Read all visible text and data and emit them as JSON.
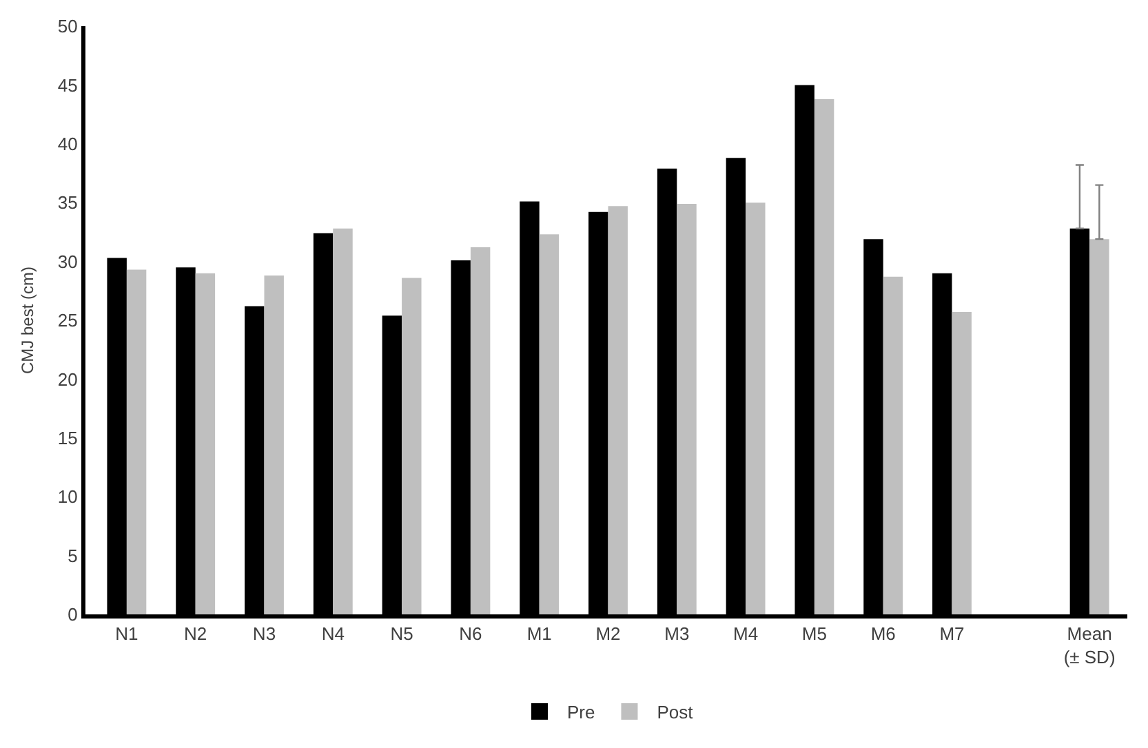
{
  "chart_data": {
    "type": "bar",
    "ylabel": "CMJ best (cm)",
    "categories": [
      "N1",
      "N2",
      "N3",
      "N4",
      "N5",
      "N6",
      "M1",
      "M2",
      "M3",
      "M4",
      "M5",
      "M6",
      "M7",
      null,
      "Mean\n(± SD)"
    ],
    "series": [
      {
        "name": "Pre",
        "color": "#000000",
        "values": [
          30.3,
          29.5,
          26.2,
          32.4,
          25.4,
          30.1,
          35.1,
          34.2,
          37.9,
          38.8,
          45.0,
          31.9,
          29.0,
          null,
          32.8
        ],
        "errors": [
          null,
          null,
          null,
          null,
          null,
          null,
          null,
          null,
          null,
          null,
          null,
          null,
          null,
          null,
          [
            32.8,
            38.2
          ]
        ]
      },
      {
        "name": "Post",
        "color": "#bfbfbf",
        "values": [
          29.3,
          29.0,
          28.8,
          32.8,
          28.6,
          31.2,
          32.3,
          34.7,
          34.9,
          35.0,
          43.8,
          28.7,
          25.7,
          null,
          31.9
        ],
        "errors": [
          null,
          null,
          null,
          null,
          null,
          null,
          null,
          null,
          null,
          null,
          null,
          null,
          null,
          null,
          [
            31.9,
            36.5
          ]
        ]
      }
    ],
    "ylim": [
      0,
      50
    ],
    "yticks": [
      0,
      5,
      10,
      15,
      20,
      25,
      30,
      35,
      40,
      45,
      50
    ],
    "legend": "bottom"
  }
}
